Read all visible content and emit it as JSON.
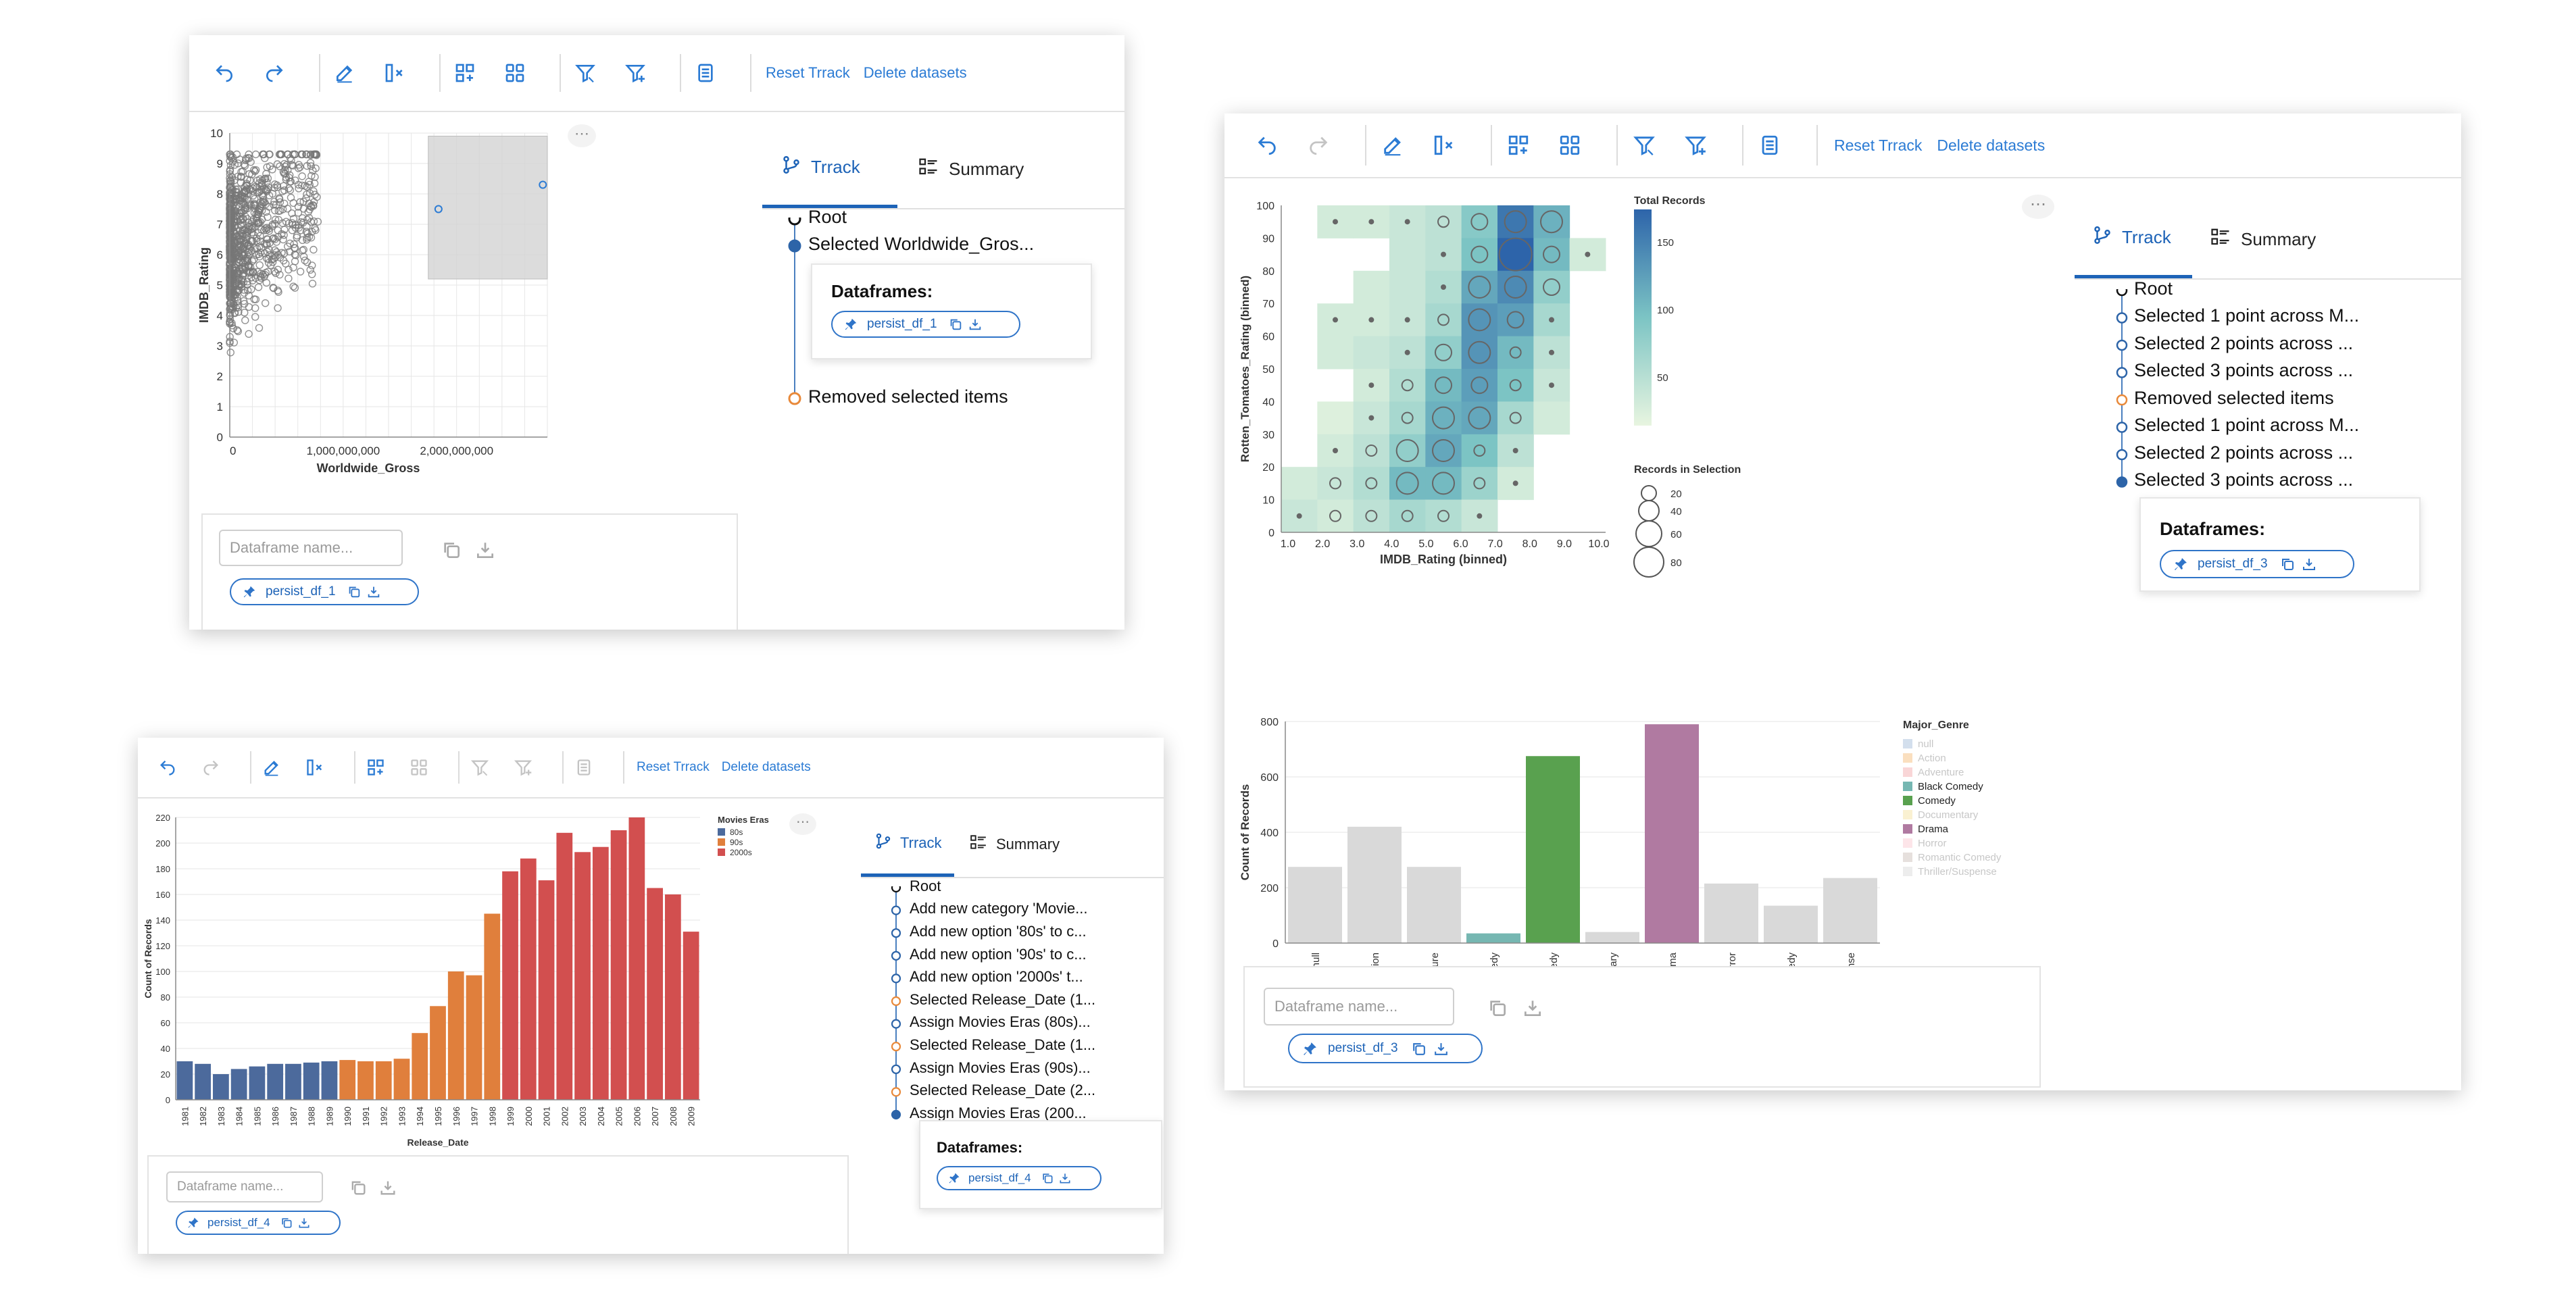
{
  "toolbar": {
    "reset_label": "Reset Trrack",
    "delete_label": "Delete datasets",
    "icons": [
      "undo-icon",
      "redo-icon",
      "edit-icon",
      "column-remove-icon",
      "add-category-icon",
      "category-grid-icon",
      "filter-icon",
      "filter-add-icon",
      "notes-icon"
    ]
  },
  "tabs": {
    "track_label": "Trrack",
    "summary_label": "Summary"
  },
  "dataframes_label": "Dataframes:",
  "input_placeholder": "Dataframe name...",
  "colors": {
    "accent": "#2b7bd4",
    "pill_border": "#2f74c8",
    "orange_node": "#e8893a",
    "dark_node": "#2d64a8"
  },
  "panel1": {
    "chart_data": {
      "type": "scatter",
      "xlabel": "Worldwide_Gross",
      "ylabel": "IMDB_Rating",
      "xticks": [
        "0",
        "1,000,000,000",
        "2,000,000,000"
      ],
      "yticks": [
        "0",
        "1",
        "2",
        "3",
        "4",
        "5",
        "6",
        "7",
        "8",
        "9",
        "10"
      ],
      "xlim": [
        0,
        2800000000
      ],
      "ylim": [
        0,
        10
      ],
      "selection": {
        "x": [
          1750000000,
          2800000000
        ],
        "y": [
          5.2,
          9.9
        ]
      },
      "highlighted_points": [
        {
          "x": 1840000000,
          "y": 7.5
        },
        {
          "x": 2760000000,
          "y": 8.3
        }
      ]
    },
    "track_items": [
      {
        "label": "Root",
        "node": "root"
      },
      {
        "label": "Selected Worldwide_Gros...",
        "node": "filled"
      },
      {
        "label": "Removed selected items",
        "node": "orange"
      }
    ],
    "df_card_pill": "persist_df_1",
    "bottom_pill": "persist_df_1"
  },
  "panel2": {
    "heatmap": {
      "type": "heatmap",
      "xlabel": "IMDB_Rating (binned)",
      "ylabel": "Rotten_Tomatoes_Rating (binned)",
      "xticks": [
        "1.0",
        "2.0",
        "3.0",
        "4.0",
        "5.0",
        "6.0",
        "7.0",
        "8.0",
        "9.0",
        "10.0"
      ],
      "yticks": [
        "0",
        "10",
        "20",
        "30",
        "40",
        "50",
        "60",
        "70",
        "80",
        "90",
        "100"
      ],
      "color_legend_title": "Total Records",
      "color_legend_ticks": [
        "150",
        "100",
        "50"
      ],
      "size_legend_title": "Records in Selection",
      "size_legend_values": [
        "20",
        "40",
        "60",
        "80"
      ]
    },
    "chart_data": {
      "type": "bar",
      "categories": [
        "null",
        "Action",
        "Adventure",
        "Black Comedy",
        "Comedy",
        "Documentary",
        "Drama",
        "Horror",
        "Romantic Comedy",
        "Thriller/Suspense"
      ],
      "values": [
        275,
        420,
        275,
        35,
        675,
        40,
        790,
        215,
        135,
        235
      ],
      "colors": [
        "#d9d9d9",
        "#d9d9d9",
        "#d9d9d9",
        "#76b7b2",
        "#59a14f",
        "#d9d9d9",
        "#b07aa1",
        "#d9d9d9",
        "#d9d9d9",
        "#d9d9d9"
      ],
      "xlabel": "Major_Genre",
      "ylabel": "Count of Records",
      "yticks": [
        "0",
        "200",
        "400",
        "600",
        "800"
      ],
      "ylim": [
        0,
        800
      ],
      "legend_title": "Major_Genre",
      "legend": [
        {
          "label": "null",
          "color": "#9db7d6",
          "faded": true
        },
        {
          "label": "Action",
          "color": "#f4b870",
          "faded": true
        },
        {
          "label": "Adventure",
          "color": "#f2a3a6",
          "faded": true
        },
        {
          "label": "Black Comedy",
          "color": "#76b7b2",
          "faded": false
        },
        {
          "label": "Comedy",
          "color": "#59a14f",
          "faded": false
        },
        {
          "label": "Documentary",
          "color": "#f5e19a",
          "faded": true
        },
        {
          "label": "Drama",
          "color": "#b07aa1",
          "faded": false
        },
        {
          "label": "Horror",
          "color": "#fbc6cf",
          "faded": true
        },
        {
          "label": "Romantic Comedy",
          "color": "#c8bbb4",
          "faded": true
        },
        {
          "label": "Thriller/Suspense",
          "color": "#d7d7d7",
          "faded": true
        }
      ]
    },
    "track_items": [
      {
        "label": "Root",
        "node": "root"
      },
      {
        "label": "Selected 1 point across M...",
        "node": "hollow"
      },
      {
        "label": "Selected 2 points across ...",
        "node": "hollow"
      },
      {
        "label": "Selected 3 points across ...",
        "node": "hollow"
      },
      {
        "label": "Removed selected items",
        "node": "orange"
      },
      {
        "label": "Selected 1 point across M...",
        "node": "hollow"
      },
      {
        "label": "Selected 2 points across ...",
        "node": "hollow"
      },
      {
        "label": "Selected 3 points across ...",
        "node": "filled"
      }
    ],
    "df_card_pill": "persist_df_3",
    "bottom_pill": "persist_df_3"
  },
  "panel3": {
    "chart_data": {
      "type": "bar",
      "categories": [
        "1981",
        "1982",
        "1983",
        "1984",
        "1985",
        "1986",
        "1987",
        "1988",
        "1989",
        "1990",
        "1991",
        "1992",
        "1993",
        "1994",
        "1995",
        "1996",
        "1997",
        "1998",
        "1999",
        "2000",
        "2001",
        "2002",
        "2003",
        "2004",
        "2005",
        "2006",
        "2007",
        "2008",
        "2009"
      ],
      "values": [
        30,
        28,
        20,
        24,
        26,
        28,
        28,
        29,
        30,
        31,
        30,
        30,
        32,
        52,
        73,
        100,
        97,
        145,
        178,
        188,
        171,
        208,
        193,
        197,
        210,
        220,
        165,
        160,
        131
      ],
      "series_by_index": [
        "80s",
        "80s",
        "80s",
        "80s",
        "80s",
        "80s",
        "80s",
        "80s",
        "80s",
        "90s",
        "90s",
        "90s",
        "90s",
        "90s",
        "90s",
        "90s",
        "90s",
        "90s",
        "2000s",
        "2000s",
        "2000s",
        "2000s",
        "2000s",
        "2000s",
        "2000s",
        "2000s",
        "2000s",
        "2000s",
        "2000s"
      ],
      "xlabel": "Release_Date",
      "ylabel": "Count of Records",
      "yticks": [
        "0",
        "20",
        "40",
        "60",
        "80",
        "100",
        "120",
        "140",
        "160",
        "180",
        "200",
        "220"
      ],
      "ylim": [
        0,
        220
      ],
      "legend_title": "Movies Eras",
      "legend": [
        {
          "label": "80s",
          "color": "#4c6a9c"
        },
        {
          "label": "90s",
          "color": "#e07f3c"
        },
        {
          "label": "2000s",
          "color": "#d24f4f"
        }
      ]
    },
    "track_items": [
      {
        "label": "Root",
        "node": "root"
      },
      {
        "label": "Add new category 'Movie...",
        "node": "hollow"
      },
      {
        "label": "Add new option '80s' to c...",
        "node": "hollow"
      },
      {
        "label": "Add new option '90s' to c...",
        "node": "hollow"
      },
      {
        "label": "Add new option '2000s' t...",
        "node": "hollow"
      },
      {
        "label": "Selected Release_Date (1...",
        "node": "orange"
      },
      {
        "label": "Assign Movies Eras (80s)...",
        "node": "hollow"
      },
      {
        "label": "Selected Release_Date (1...",
        "node": "orange"
      },
      {
        "label": "Assign Movies Eras (90s)...",
        "node": "hollow"
      },
      {
        "label": "Selected Release_Date (2...",
        "node": "orange"
      },
      {
        "label": "Assign Movies Eras (200...",
        "node": "filled"
      }
    ],
    "df_card_pill": "persist_df_4",
    "bottom_pill": "persist_df_4"
  }
}
